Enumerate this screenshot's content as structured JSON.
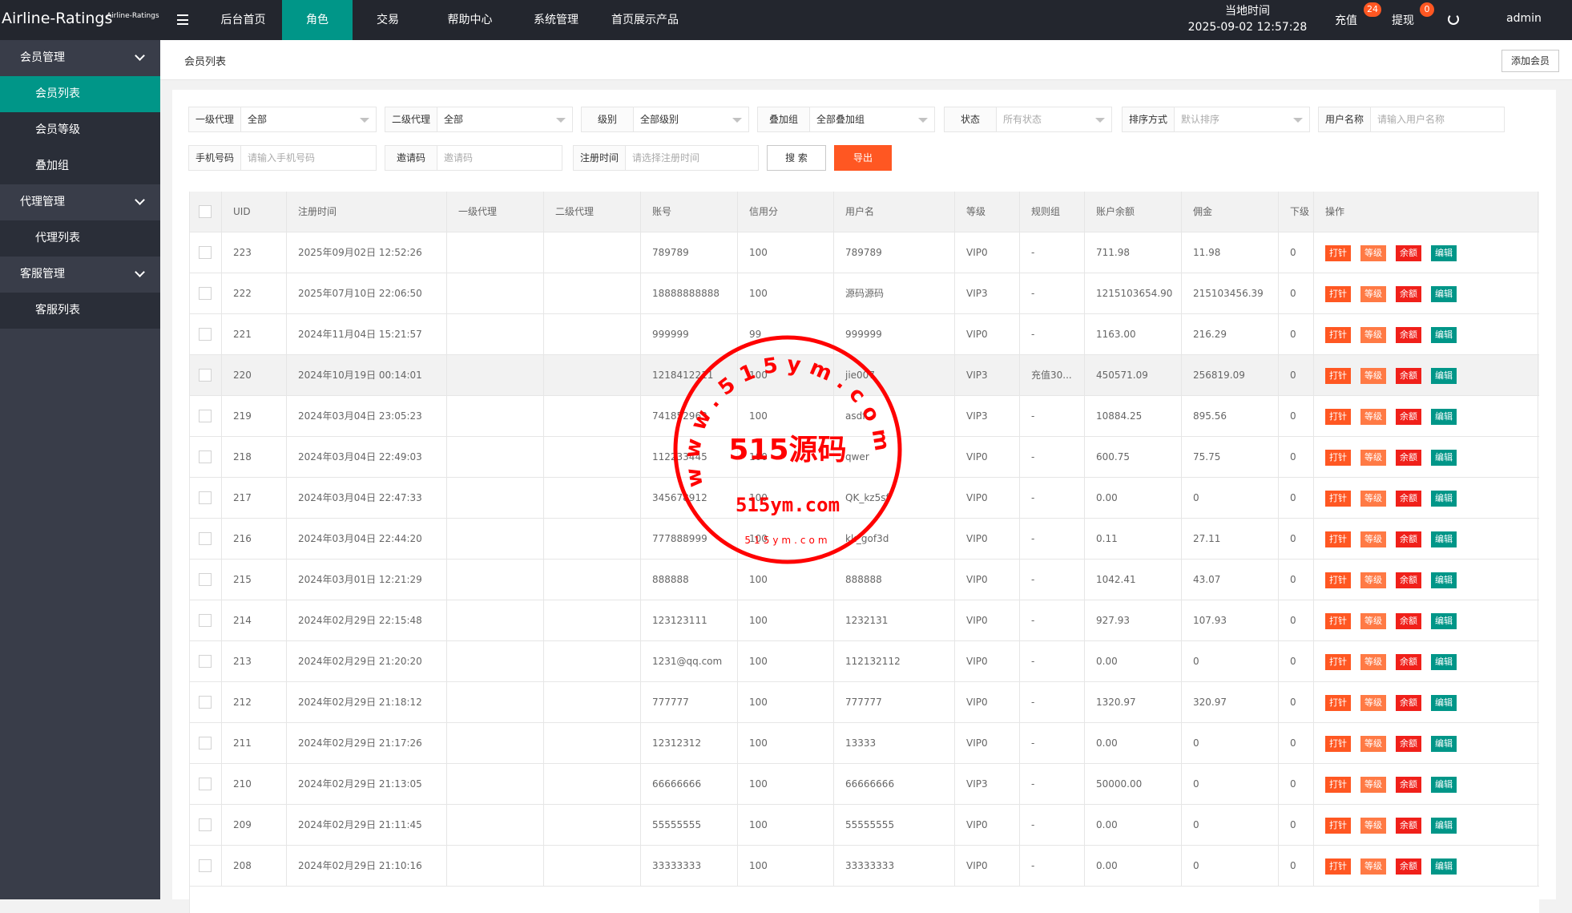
{
  "header": {
    "logo": "Airline-Ratings",
    "logo_small": "Airline-Ratings",
    "nav": [
      "后台首页",
      "角色",
      "交易",
      "帮助中心",
      "系统管理",
      "首页展示产品"
    ],
    "time_label": "当地时间",
    "time": "2025-09-02 12:57:28",
    "recharge": "充值",
    "recharge_badge": "24",
    "withdraw": "提现",
    "withdraw_badge": "0",
    "user": "admin"
  },
  "sidebar": [
    {
      "title": "会员管理",
      "items": [
        "会员列表",
        "会员等级",
        "叠加组"
      ]
    },
    {
      "title": "代理管理",
      "items": [
        "代理列表"
      ]
    },
    {
      "title": "客服管理",
      "items": [
        "客服列表"
      ]
    }
  ],
  "breadcrumb": "会员列表",
  "add_button": "添加会员",
  "filters": [
    {
      "label": "一级代理",
      "value": "全部"
    },
    {
      "label": "二级代理",
      "value": "全部"
    },
    {
      "label": "级别",
      "value": "全部级别"
    },
    {
      "label": "叠加组",
      "value": "全部叠加组"
    },
    {
      "label": "状态",
      "placeholder": "所有状态"
    },
    {
      "label": "排序方式",
      "placeholder": "默认排序"
    },
    {
      "label": "用户名称",
      "placeholder": "请输入用户名称"
    },
    {
      "label": "手机号码",
      "placeholder": "请输入手机号码"
    },
    {
      "label": "邀请码",
      "placeholder": "邀请码"
    },
    {
      "label": "注册时间",
      "placeholder": "请选择注册时间"
    }
  ],
  "search_button": "搜 索",
  "export_button": "导出",
  "table": {
    "columns": [
      "UID",
      "注册时间",
      "一级代理",
      "二级代理",
      "账号",
      "信用分",
      "用户名",
      "等级",
      "规则组",
      "账户余额",
      "佣金",
      "下级",
      "操作"
    ],
    "actions": [
      "打针",
      "等级",
      "余额",
      "编辑"
    ],
    "rows": [
      {
        "uid": "223",
        "time": "2025年09月02日 12:52:26",
        "account": "789789",
        "credit": "100",
        "username": "789789",
        "level": "VIP0",
        "rule": "-",
        "balance": "711.98",
        "commission": "11.98",
        "sub": "0"
      },
      {
        "uid": "222",
        "time": "2025年07月10日 22:06:50",
        "account": "18888888888",
        "credit": "100",
        "username": "源码源码",
        "level": "VIP3",
        "rule": "-",
        "balance": "1215103654.90",
        "commission": "215103456.39",
        "sub": "0"
      },
      {
        "uid": "221",
        "time": "2024年11月04日 15:21:57",
        "account": "999999",
        "credit": "99",
        "username": "999999",
        "level": "VIP0",
        "rule": "-",
        "balance": "1163.00",
        "commission": "216.29",
        "sub": "0"
      },
      {
        "uid": "220",
        "time": "2024年10月19日 00:14:01",
        "account": "1218412211",
        "credit": "100",
        "username": "jie007",
        "level": "VIP3",
        "rule": "充值30...",
        "balance": "450571.09",
        "commission": "256819.09",
        "sub": "0"
      },
      {
        "uid": "219",
        "time": "2024年03月04日 23:05:23",
        "account": "741852963",
        "credit": "100",
        "username": "asdf",
        "level": "VIP3",
        "rule": "-",
        "balance": "10884.25",
        "commission": "895.56",
        "sub": "0"
      },
      {
        "uid": "218",
        "time": "2024年03月04日 22:49:03",
        "account": "112233445",
        "credit": "100",
        "username": "qwer",
        "level": "VIP0",
        "rule": "-",
        "balance": "600.75",
        "commission": "75.75",
        "sub": "0"
      },
      {
        "uid": "217",
        "time": "2024年03月04日 22:47:33",
        "account": "345678912",
        "credit": "100",
        "username": "QK_kz5sf",
        "level": "VIP0",
        "rule": "-",
        "balance": "0.00",
        "commission": "0",
        "sub": "0"
      },
      {
        "uid": "216",
        "time": "2024年03月04日 22:44:20",
        "account": "777888999",
        "credit": "100",
        "username": "kk_gof3d",
        "level": "VIP0",
        "rule": "-",
        "balance": "0.11",
        "commission": "27.11",
        "sub": "0"
      },
      {
        "uid": "215",
        "time": "2024年03月01日 12:21:29",
        "account": "888888",
        "credit": "100",
        "username": "888888",
        "level": "VIP0",
        "rule": "-",
        "balance": "1042.41",
        "commission": "43.07",
        "sub": "0"
      },
      {
        "uid": "214",
        "time": "2024年02月29日 22:15:48",
        "account": "123123111",
        "credit": "100",
        "username": "1232131",
        "level": "VIP0",
        "rule": "-",
        "balance": "927.93",
        "commission": "107.93",
        "sub": "0"
      },
      {
        "uid": "213",
        "time": "2024年02月29日 21:20:20",
        "account": "1231@qq.com",
        "credit": "100",
        "username": "112132112",
        "level": "VIP0",
        "rule": "-",
        "balance": "0.00",
        "commission": "0",
        "sub": "0"
      },
      {
        "uid": "212",
        "time": "2024年02月29日 21:18:12",
        "account": "777777",
        "credit": "100",
        "username": "777777",
        "level": "VIP0",
        "rule": "-",
        "balance": "1320.97",
        "commission": "320.97",
        "sub": "0"
      },
      {
        "uid": "211",
        "time": "2024年02月29日 21:17:26",
        "account": "12312312",
        "credit": "100",
        "username": "13333",
        "level": "VIP0",
        "rule": "-",
        "balance": "0.00",
        "commission": "0",
        "sub": "0"
      },
      {
        "uid": "210",
        "time": "2024年02月29日 21:13:05",
        "account": "66666666",
        "credit": "100",
        "username": "66666666",
        "level": "VIP3",
        "rule": "-",
        "balance": "50000.00",
        "commission": "0",
        "sub": "0"
      },
      {
        "uid": "209",
        "time": "2024年02月29日 21:11:45",
        "account": "55555555",
        "credit": "100",
        "username": "55555555",
        "level": "VIP0",
        "rule": "-",
        "balance": "0.00",
        "commission": "0",
        "sub": "0"
      },
      {
        "uid": "208",
        "time": "2024年02月29日 21:10:16",
        "account": "33333333",
        "credit": "100",
        "username": "33333333",
        "level": "VIP0",
        "rule": "-",
        "balance": "0.00",
        "commission": "0",
        "sub": "0"
      }
    ]
  },
  "watermark": {
    "ring": "www.515ym.com",
    "center": "515源码",
    "domain": "515ym.com",
    "small": "515ym.com"
  }
}
